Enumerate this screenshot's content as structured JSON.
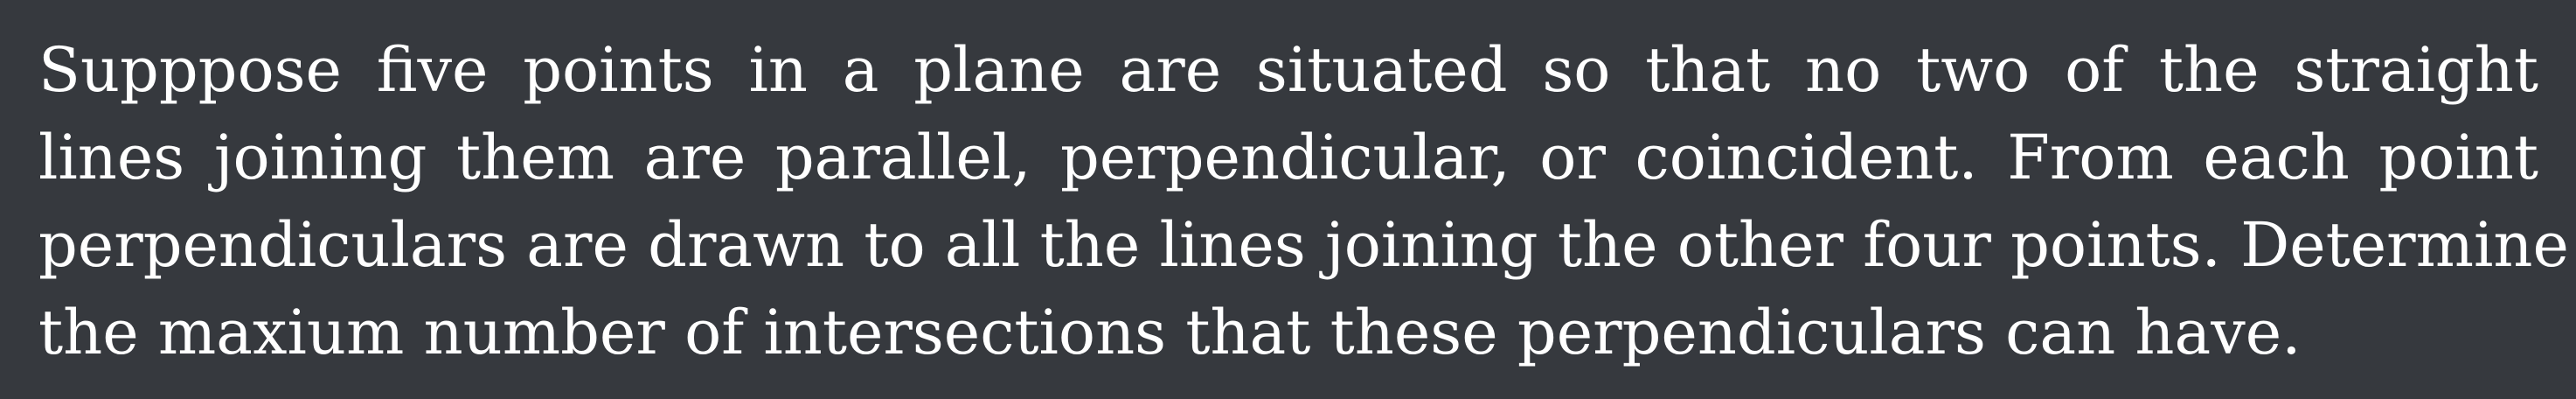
{
  "problem": {
    "lines": [
      "Supppose five points in a plane are situated so that no two of the straight",
      "lines joining them are parallel, perpendicular, or coincident. From each point",
      "perpendiculars are drawn to all the lines joining the other four points. Determine",
      "the maxium number of intersections that these perpendiculars can have."
    ]
  }
}
